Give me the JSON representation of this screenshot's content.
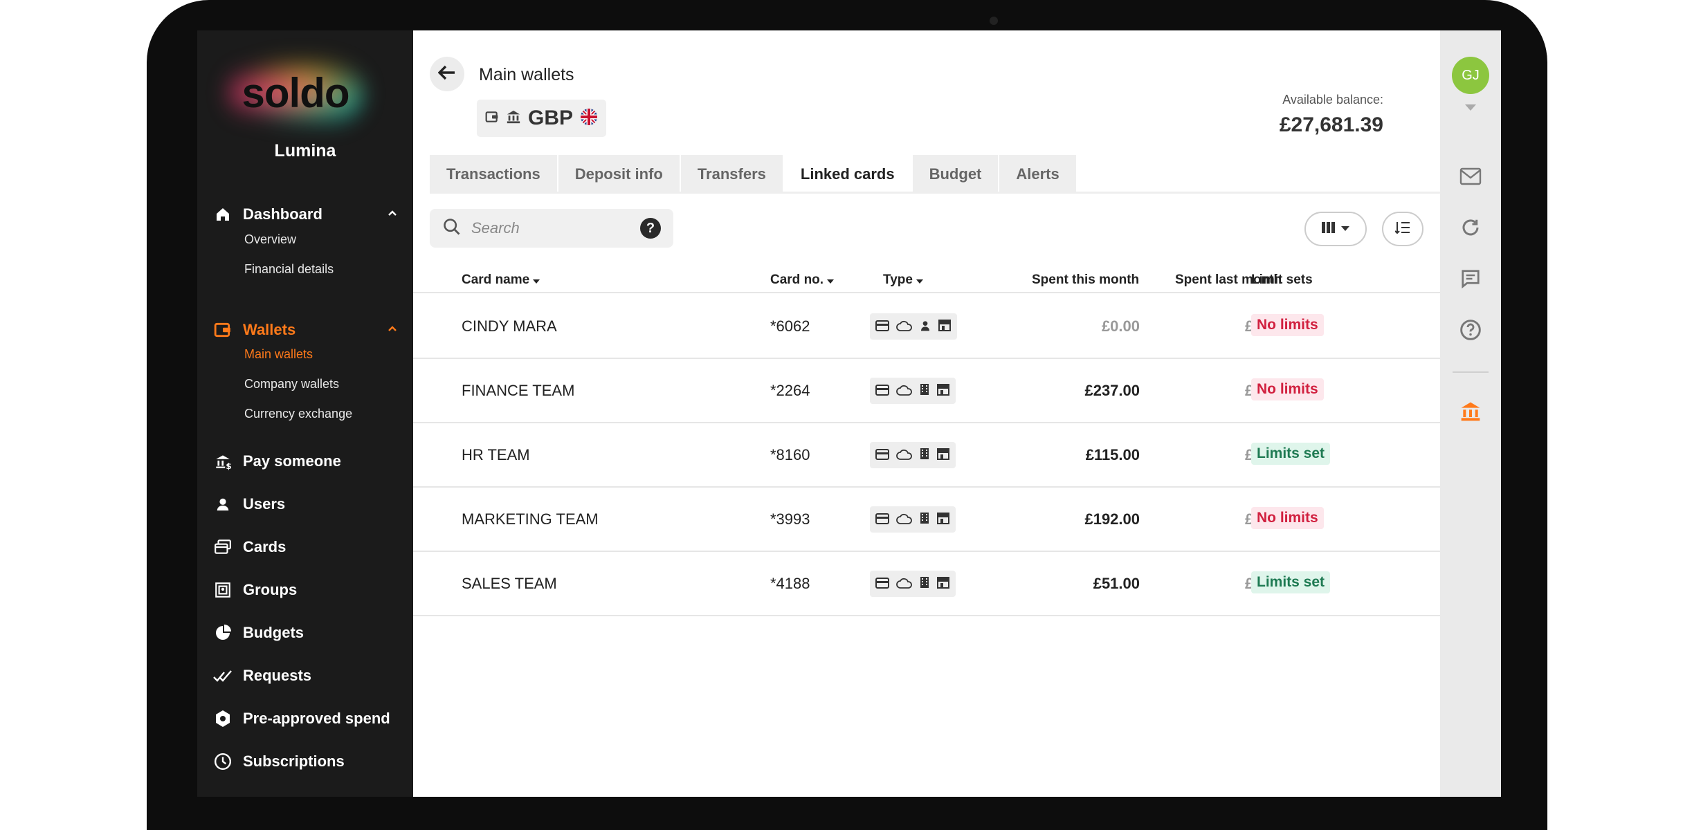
{
  "sidebar": {
    "logo_text": "soldo",
    "company": "Lumina",
    "nav": {
      "dashboard": "Dashboard",
      "overview": "Overview",
      "financial_details": "Financial details",
      "wallets": "Wallets",
      "main_wallets": "Main wallets",
      "company_wallets": "Company wallets",
      "currency_exchange": "Currency exchange",
      "pay_someone": "Pay someone",
      "users": "Users",
      "cards": "Cards",
      "groups": "Groups",
      "budgets": "Budgets",
      "requests": "Requests",
      "pre_approved": "Pre-approved spend",
      "subscriptions": "Subscriptions"
    }
  },
  "header": {
    "title": "Main wallets",
    "currency": "GBP",
    "balance_label": "Available balance:",
    "balance_value": "£27,681.39"
  },
  "tabs": [
    "Transactions",
    "Deposit info",
    "Transfers",
    "Linked cards",
    "Budget",
    "Alerts"
  ],
  "search": {
    "placeholder": "Search",
    "help": "?"
  },
  "table": {
    "headers": {
      "card_name": "Card name",
      "card_no": "Card no.",
      "type": "Type",
      "spent_this_month": "Spent this month",
      "spent_last_month": "Spent last month",
      "limit_sets": "Limit sets"
    },
    "rows": [
      {
        "name": "CINDY MARA",
        "number": "*6062",
        "this_month": "£0.00",
        "last_month": "£0.00",
        "limit": "No limits"
      },
      {
        "name": "FINANCE TEAM",
        "number": "*2264",
        "this_month": "£237.00",
        "last_month": "£0.00",
        "limit": "No limits"
      },
      {
        "name": "HR TEAM",
        "number": "*8160",
        "this_month": "£115.00",
        "last_month": "£0.00",
        "limit": "Limits set"
      },
      {
        "name": "MARKETING TEAM",
        "number": "*3993",
        "this_month": "£192.00",
        "last_month": "£0.00",
        "limit": "No limits"
      },
      {
        "name": "SALES TEAM",
        "number": "*4188",
        "this_month": "£51.00",
        "last_month": "£0.00",
        "limit": "Limits set"
      }
    ]
  },
  "rail": {
    "avatar_initials": "GJ"
  },
  "colors": {
    "accent": "#ff7a1a",
    "sidebar_bg": "#1b1b1b",
    "no_limits": "#d1203f",
    "limits_set": "#1e7a52"
  },
  "icons": [
    "home-icon",
    "wallet-icon",
    "pay-icon",
    "user-icon",
    "cards-icon",
    "groups-icon",
    "budgets-icon",
    "requests-icon",
    "shield-icon",
    "clock-icon",
    "back-arrow-icon",
    "bank-icon",
    "uk-flag-icon",
    "search-icon",
    "columns-icon",
    "sort-list-icon",
    "card-icon",
    "cloud-icon",
    "building-icon",
    "store-icon",
    "mail-icon",
    "refresh-icon",
    "chat-icon",
    "help-icon"
  ]
}
